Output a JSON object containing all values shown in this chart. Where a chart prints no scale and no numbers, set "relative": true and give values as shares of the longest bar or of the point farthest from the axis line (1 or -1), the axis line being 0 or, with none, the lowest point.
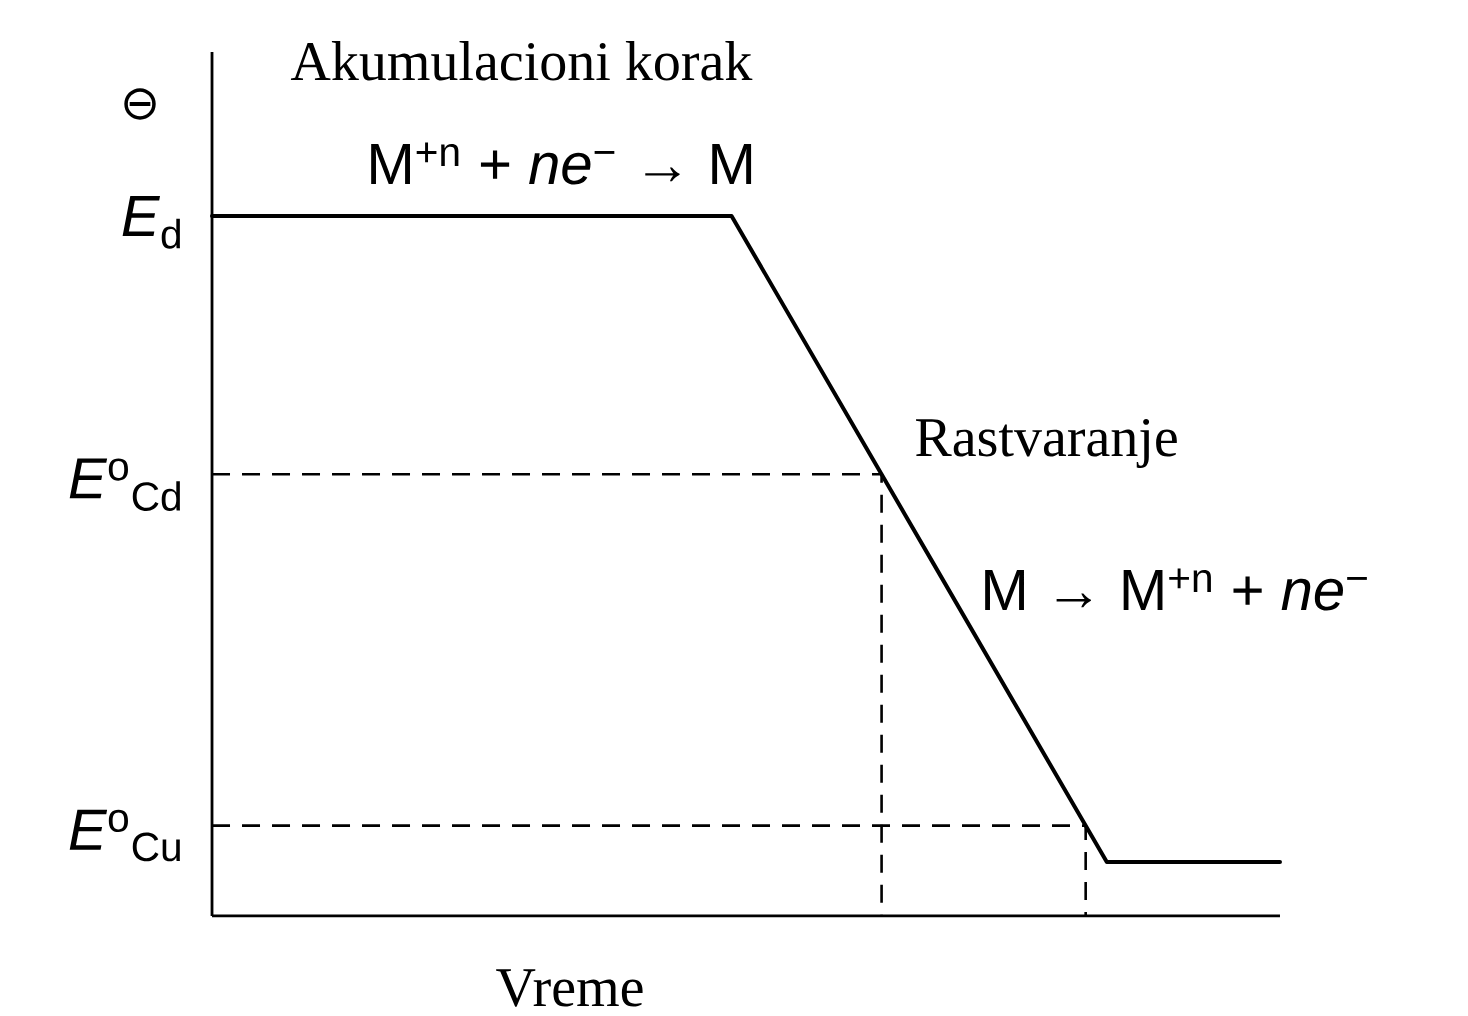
{
  "chart_data": {
    "type": "line",
    "relative": true,
    "xlabel": "Vreme",
    "ylabel": "⊖",
    "categories": [
      null,
      null,
      null,
      null,
      null,
      null,
      null,
      null,
      null,
      null,
      null,
      null,
      null,
      null,
      null,
      null,
      null,
      null,
      null,
      null,
      null,
      null,
      null,
      null,
      null,
      null,
      null,
      null,
      null,
      null,
      null,
      null,
      null,
      null,
      null,
      null,
      null,
      null
    ],
    "series": [
      {
        "color": "#000000",
        "values": [
          1,
          1,
          1,
          1,
          1,
          1,
          1,
          1,
          1,
          1,
          1,
          1,
          1,
          1,
          1,
          1,
          1,
          1,
          1,
          0.929,
          0.858,
          0.787,
          0.716,
          0.645,
          0.574,
          0.503,
          0.432,
          0.361,
          0.29,
          0.219,
          0.148,
          0.077,
          0.077,
          0.077,
          0.077,
          0.077,
          0.077,
          0.077
        ]
      }
    ],
    "ref_lines": [
      {
        "axis": "y",
        "value": 0.631,
        "label": "*E*$^{o}$$_{Cd}$",
        "line_style": "dashed",
        "color": "#000000"
      },
      {
        "axis": "y",
        "value": 0.129,
        "label": "*E*$^{o}$$_{Cu}$",
        "line_style": "dashed",
        "color": "#000000"
      }
    ],
    "annotations": [
      "Akumulacioni korak",
      "M$^{+n}$ + *ne*$^{−}$ → M",
      "Rastvaranje",
      "M → M$^{+n}$ + *ne*$^{−}$",
      "*E*$_{d}$"
    ]
  }
}
